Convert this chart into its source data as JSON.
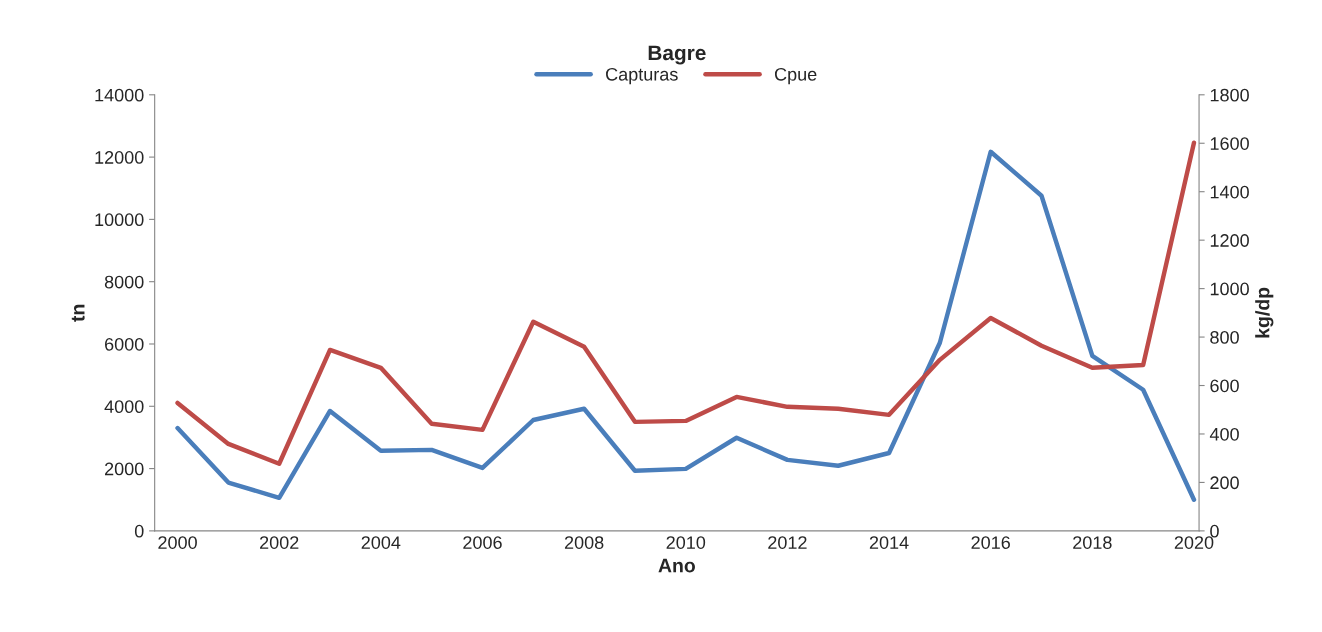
{
  "chart_data": {
    "type": "line",
    "title": "Bagre",
    "xlabel": "Ano",
    "ylabel": "tn",
    "y2label": "kg/dp",
    "categories": [
      "2000",
      null,
      "2002",
      null,
      "2004",
      null,
      "2006",
      null,
      "2008",
      null,
      "2010",
      null,
      "2012",
      null,
      "2014",
      null,
      "2016",
      null,
      "2018",
      null,
      "2020"
    ],
    "series": [
      {
        "name": "Capturas",
        "color": "#4a7ebb",
        "values": [
          3300,
          1550,
          1060,
          3850,
          2570,
          2600,
          2020,
          3560,
          3920,
          1930,
          1990,
          2990,
          2280,
          2090,
          2500,
          6040,
          12170,
          10760,
          5620,
          4530,
          1000
        ]
      },
      {
        "name": "Cpue",
        "color": "#be4b48",
        "axis": "y2",
        "values": [
          528,
          359,
          277,
          747,
          673,
          442,
          417,
          863,
          760,
          450,
          454,
          553,
          512,
          504,
          479,
          706,
          879,
          764,
          673,
          685,
          1602
        ]
      }
    ],
    "ylim": [
      0,
      14000
    ],
    "yticks": [
      0,
      2000,
      4000,
      6000,
      8000,
      10000,
      12000,
      14000
    ],
    "y2lim": [
      0,
      1800
    ],
    "y2ticks": [
      0,
      200,
      400,
      600,
      800,
      1000,
      1200,
      1400,
      1600,
      1800
    ],
    "grid": false,
    "legend": "top",
    "marker": "none",
    "line_style": "solid"
  }
}
